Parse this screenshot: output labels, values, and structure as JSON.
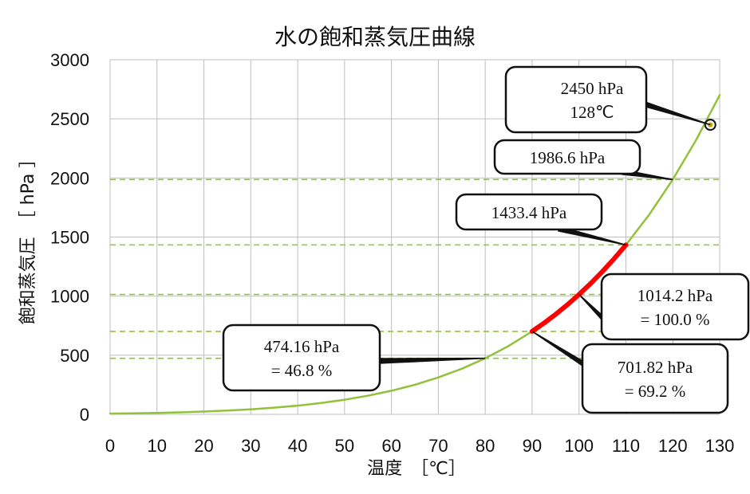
{
  "chart_data": {
    "type": "line",
    "title": "水の飽和蒸気圧曲線",
    "xlabel": "温度　［℃］",
    "ylabel": "飽和蒸気圧　［ hPa ］",
    "xlim": [
      0,
      130
    ],
    "ylim": [
      0,
      3000
    ],
    "x_ticks": [
      "0",
      "10",
      "20",
      "30",
      "40",
      "50",
      "60",
      "70",
      "80",
      "90",
      "100",
      "110",
      "120",
      "130"
    ],
    "y_ticks": [
      "0",
      "500",
      "1000",
      "1500",
      "2000",
      "2500",
      "3000"
    ],
    "grid": true,
    "series": [
      {
        "color": "#92c13b",
        "x": [
          0,
          5,
          10,
          15,
          20,
          25,
          30,
          35,
          40,
          45,
          50,
          55,
          60,
          65,
          70,
          75,
          80,
          85,
          90,
          95,
          100,
          105,
          110,
          115,
          120,
          125,
          130
        ],
        "y": [
          6.1,
          8.7,
          12.3,
          17.0,
          23.4,
          31.7,
          42.5,
          56.3,
          73.8,
          95.9,
          123.5,
          157.6,
          199.5,
          250.4,
          311.8,
          385.8,
          474.2,
          578.6,
          701.8,
          845.7,
          1014.2,
          1208.9,
          1433.4,
          1691.1,
          1986.6,
          2322.3,
          2701.0
        ]
      },
      {
        "color": "#ff0000",
        "x": [
          90,
          92.5,
          95,
          97.5,
          100,
          102.5,
          105,
          107.5,
          110
        ],
        "y": [
          701.8,
          770.3,
          845.7,
          926.4,
          1014.2,
          1107.9,
          1208.9,
          1317.2,
          1433.4
        ]
      }
    ],
    "reference_lines": [
      {
        "y": 1986.6,
        "color": "#92c13b"
      },
      {
        "y": 1433.4,
        "color": "#92c13b"
      },
      {
        "y": 1014.2,
        "color": "#92c13b"
      },
      {
        "y": 701.82,
        "color": "#92c13b"
      },
      {
        "y": 474.16,
        "color": "#92c13b"
      }
    ],
    "marker": {
      "x": 128,
      "y": 2450,
      "color": "#c8a300"
    },
    "annotations": [
      {
        "lines": [
          "2450 hPa",
          "128℃"
        ],
        "x": 128,
        "y": 2450
      },
      {
        "lines": [
          "1986.6 hPa"
        ],
        "x": 120,
        "y": 1986.6
      },
      {
        "lines": [
          "1433.4 hPa"
        ],
        "x": 110,
        "y": 1433.4
      },
      {
        "lines": [
          "1014.2 hPa",
          "= 100.0 %"
        ],
        "x": 100,
        "y": 1014.2
      },
      {
        "lines": [
          "701.82 hPa",
          "= 69.2 %"
        ],
        "x": 90,
        "y": 701.82
      },
      {
        "lines": [
          "474.16 hPa",
          "= 46.8 %"
        ],
        "x": 80,
        "y": 474.16
      }
    ]
  }
}
